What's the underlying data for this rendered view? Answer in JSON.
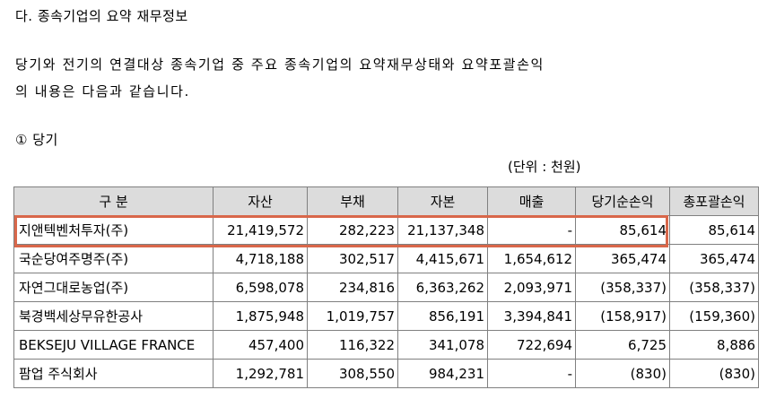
{
  "section_title": "다. 종속기업의 요약 재무정보",
  "intro": {
    "line1": "당기와 전기의 연결대상 종속기업 중 주요 종속기업의 요약재무상태와 요약포괄손익",
    "line2": "의 내용은 다음과 같습니다."
  },
  "period_label": "① 당기",
  "unit_label": "(단위 : 천원)",
  "highlight_color": "#d9674a",
  "header_bg": "#dcdcdc",
  "table": {
    "headers": [
      "구 분",
      "자산",
      "부채",
      "자본",
      "매출",
      "당기순손익",
      "총포괄손익"
    ],
    "rows": [
      [
        "지앤텍벤처투자(주)",
        "21,419,572",
        "282,223",
        "21,137,348",
        "-",
        "85,614",
        "85,614"
      ],
      [
        "국순당여주명주(주)",
        "4,718,188",
        "302,517",
        "4,415,671",
        "1,654,612",
        "365,474",
        "365,474"
      ],
      [
        "자연그대로농업(주)",
        "6,598,078",
        "234,816",
        "6,363,262",
        "2,093,971",
        "(358,337)",
        "(358,337)"
      ],
      [
        "북경백세상무유한공사",
        "1,875,948",
        "1,019,757",
        "856,191",
        "3,394,841",
        "(158,917)",
        "(159,360)"
      ],
      [
        "BEKSEJU VILLAGE FRANCE",
        "457,400",
        "116,322",
        "341,078",
        "722,694",
        "6,725",
        "8,886"
      ],
      [
        "팜업 주식회사",
        "1,292,781",
        "308,550",
        "984,231",
        "-",
        "(830)",
        "(830)"
      ]
    ],
    "highlighted_row_index": 0
  }
}
